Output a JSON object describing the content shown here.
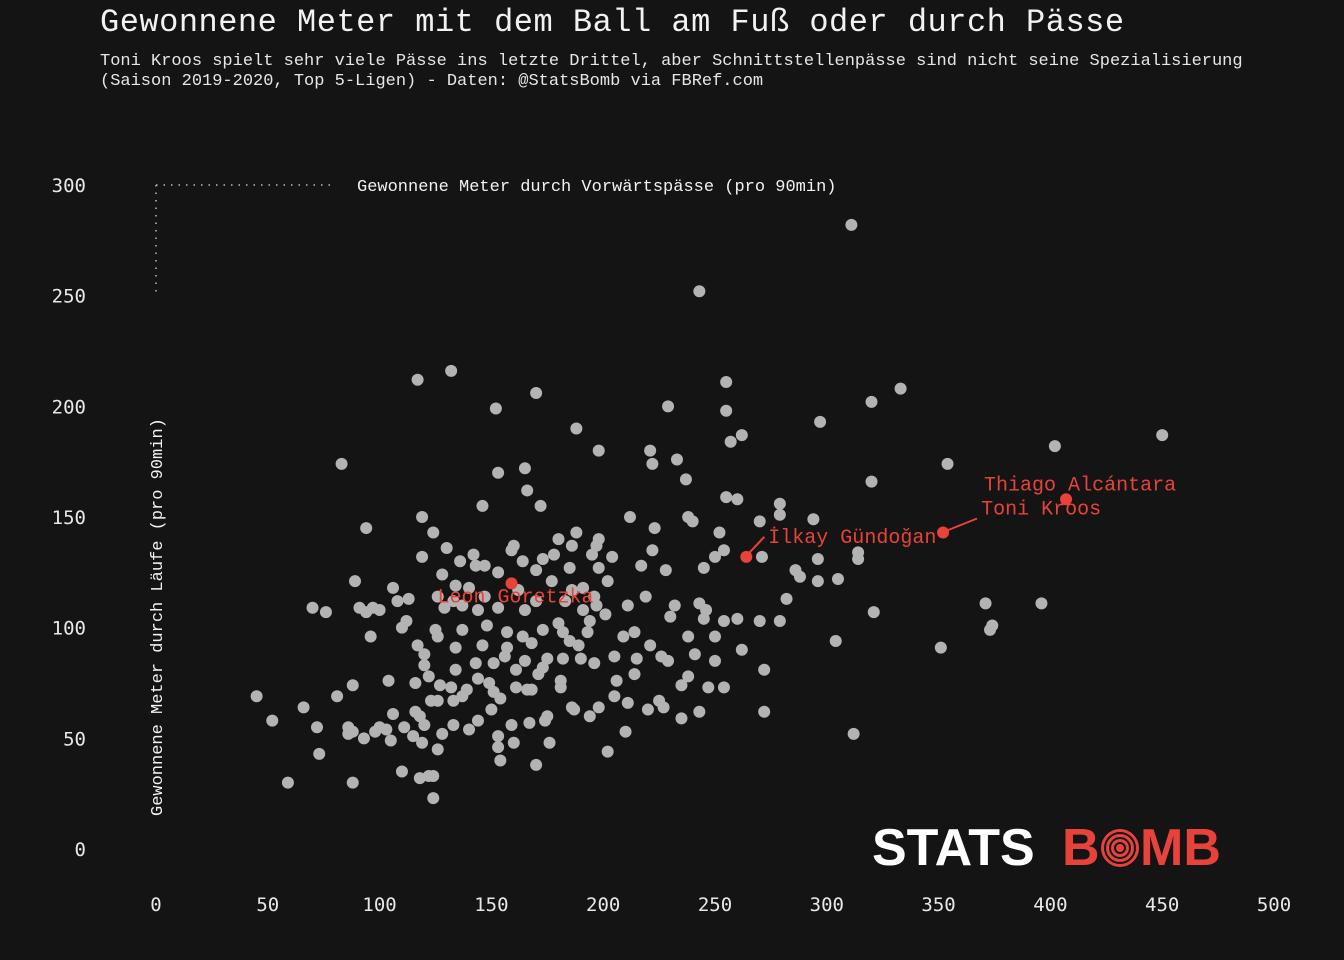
{
  "title": "Gewonnene Meter mit dem Ball am Fuß oder durch Pässe",
  "subtitle_line1": "Toni Kroos spielt sehr viele Pässe ins letzte Drittel, aber Schnittstellenpässe sind nicht seine Spezialisierung",
  "subtitle_line2": "(Saison 2019-2020, Top 5-Ligen) - Daten: @StatsBomb via FBRef.com",
  "logo": {
    "text_left": "STATS",
    "text_right": "B",
    "text_right2": "MB",
    "color_left": "#ffffff",
    "color_right": "#e8433a"
  },
  "colors": {
    "background": "#141414",
    "points": "#b3b3b3",
    "highlight": "#e8433a",
    "text": "#e8e8e8"
  },
  "chart_data": {
    "type": "scatter",
    "title": "Gewonnene Meter mit dem Ball am Fuß oder durch Pässe",
    "xlabel": "Gewonnene Meter durch Vorwärtspässe (pro 90min)",
    "ylabel": "Gewonnene Meter durch Läufe (pro 90min)",
    "xlim": [
      0,
      500
    ],
    "ylim": [
      0,
      300
    ],
    "xticks": [
      0,
      50,
      100,
      150,
      200,
      250,
      300,
      350,
      400,
      450,
      500
    ],
    "yticks": [
      0,
      50,
      100,
      150,
      200,
      250,
      300
    ],
    "grid": false,
    "highlighted": [
      {
        "name": "Thiago Alcántara",
        "x": 407,
        "y": 158
      },
      {
        "name": "Toni Kroos",
        "x": 352,
        "y": 143
      },
      {
        "name": "İlkay Gündoğan",
        "x": 264,
        "y": 132
      },
      {
        "name": "Leon Goretzka",
        "x": 159,
        "y": 120
      }
    ],
    "points": [
      [
        311,
        282
      ],
      [
        243,
        252
      ],
      [
        132,
        216
      ],
      [
        117,
        212
      ],
      [
        255,
        211
      ],
      [
        333,
        208
      ],
      [
        170,
        206
      ],
      [
        152,
        199
      ],
      [
        229,
        200
      ],
      [
        320,
        202
      ],
      [
        255,
        198
      ],
      [
        297,
        193
      ],
      [
        188,
        190
      ],
      [
        262,
        187
      ],
      [
        450,
        187
      ],
      [
        257,
        184
      ],
      [
        402,
        182
      ],
      [
        198,
        180
      ],
      [
        221,
        180
      ],
      [
        233,
        176
      ],
      [
        83,
        174
      ],
      [
        222,
        174
      ],
      [
        354,
        174
      ],
      [
        165,
        172
      ],
      [
        237,
        167
      ],
      [
        320,
        166
      ],
      [
        153,
        170
      ],
      [
        166,
        162
      ],
      [
        260,
        158
      ],
      [
        255,
        159
      ],
      [
        279,
        156
      ],
      [
        146,
        155
      ],
      [
        172,
        155
      ],
      [
        279,
        151
      ],
      [
        119,
        150
      ],
      [
        212,
        150
      ],
      [
        238,
        150
      ],
      [
        294,
        149
      ],
      [
        270,
        148
      ],
      [
        240,
        148
      ],
      [
        94,
        145
      ],
      [
        223,
        145
      ],
      [
        188,
        143
      ],
      [
        124,
        143
      ],
      [
        252,
        143
      ],
      [
        180,
        140
      ],
      [
        198,
        140
      ],
      [
        197,
        137
      ],
      [
        130,
        136
      ],
      [
        160,
        137
      ],
      [
        186,
        137
      ],
      [
        159,
        135
      ],
      [
        222,
        135
      ],
      [
        254,
        135
      ],
      [
        250,
        132
      ],
      [
        142,
        133
      ],
      [
        314,
        134
      ],
      [
        173,
        131
      ],
      [
        178,
        133
      ],
      [
        195,
        133
      ],
      [
        204,
        132
      ],
      [
        271,
        132
      ],
      [
        296,
        131
      ],
      [
        119,
        132
      ],
      [
        136,
        130
      ],
      [
        147,
        128
      ],
      [
        164,
        130
      ],
      [
        314,
        131
      ],
      [
        217,
        128
      ],
      [
        245,
        127
      ],
      [
        143,
        128
      ],
      [
        128,
        124
      ],
      [
        153,
        125
      ],
      [
        170,
        126
      ],
      [
        185,
        127
      ],
      [
        198,
        127
      ],
      [
        228,
        126
      ],
      [
        286,
        126
      ],
      [
        288,
        123
      ],
      [
        305,
        122
      ],
      [
        89,
        121
      ],
      [
        202,
        121
      ],
      [
        296,
        121
      ],
      [
        134,
        119
      ],
      [
        177,
        121
      ],
      [
        140,
        118
      ],
      [
        162,
        117
      ],
      [
        186,
        117
      ],
      [
        191,
        118
      ],
      [
        106,
        118
      ],
      [
        126,
        114
      ],
      [
        113,
        113
      ],
      [
        196,
        114
      ],
      [
        219,
        114
      ],
      [
        282,
        113
      ],
      [
        147,
        114
      ],
      [
        108,
        112
      ],
      [
        133,
        112
      ],
      [
        170,
        112
      ],
      [
        183,
        112
      ],
      [
        137,
        110
      ],
      [
        197,
        110
      ],
      [
        243,
        111
      ],
      [
        371,
        111
      ],
      [
        396,
        111
      ],
      [
        70,
        109
      ],
      [
        76,
        107
      ],
      [
        91,
        109
      ],
      [
        94,
        107
      ],
      [
        97,
        109
      ],
      [
        100,
        108
      ],
      [
        129,
        109
      ],
      [
        144,
        108
      ],
      [
        153,
        109
      ],
      [
        165,
        108
      ],
      [
        191,
        108
      ],
      [
        211,
        110
      ],
      [
        232,
        110
      ],
      [
        246,
        108
      ],
      [
        321,
        107
      ],
      [
        201,
        106
      ],
      [
        230,
        105
      ],
      [
        245,
        104
      ],
      [
        260,
        104
      ],
      [
        270,
        103
      ],
      [
        279,
        103
      ],
      [
        112,
        103
      ],
      [
        110,
        100
      ],
      [
        148,
        101
      ],
      [
        180,
        102
      ],
      [
        194,
        103
      ],
      [
        254,
        103
      ],
      [
        137,
        99
      ],
      [
        125,
        99
      ],
      [
        157,
        98
      ],
      [
        173,
        99
      ],
      [
        182,
        98
      ],
      [
        193,
        98
      ],
      [
        214,
        98
      ],
      [
        126,
        96
      ],
      [
        96,
        96
      ],
      [
        164,
        96
      ],
      [
        209,
        96
      ],
      [
        238,
        96
      ],
      [
        250,
        96
      ],
      [
        185,
        94
      ],
      [
        304,
        94
      ],
      [
        146,
        92
      ],
      [
        168,
        93
      ],
      [
        189,
        92
      ],
      [
        221,
        92
      ],
      [
        117,
        92
      ],
      [
        134,
        91
      ],
      [
        157,
        91
      ],
      [
        262,
        90
      ],
      [
        351,
        91
      ],
      [
        374,
        101
      ],
      [
        373,
        99
      ],
      [
        241,
        88
      ],
      [
        120,
        88
      ],
      [
        156,
        87
      ],
      [
        165,
        85
      ],
      [
        205,
        87
      ],
      [
        226,
        87
      ],
      [
        175,
        86
      ],
      [
        215,
        86
      ],
      [
        182,
        86
      ],
      [
        190,
        86
      ],
      [
        229,
        85
      ],
      [
        250,
        85
      ],
      [
        143,
        84
      ],
      [
        151,
        84
      ],
      [
        196,
        84
      ],
      [
        173,
        82
      ],
      [
        120,
        83
      ],
      [
        161,
        81
      ],
      [
        272,
        81
      ],
      [
        134,
        81
      ],
      [
        122,
        78
      ],
      [
        214,
        79
      ],
      [
        104,
        76
      ],
      [
        181,
        76
      ],
      [
        144,
        77
      ],
      [
        171,
        79
      ],
      [
        116,
        75
      ],
      [
        149,
        75
      ],
      [
        206,
        76
      ],
      [
        238,
        78
      ],
      [
        127,
        74
      ],
      [
        132,
        73
      ],
      [
        168,
        72
      ],
      [
        247,
        73
      ],
      [
        88,
        74
      ],
      [
        139,
        72
      ],
      [
        235,
        74
      ],
      [
        181,
        73
      ],
      [
        254,
        73
      ],
      [
        161,
        73
      ],
      [
        166,
        72
      ],
      [
        151,
        71
      ],
      [
        45,
        69
      ],
      [
        81,
        69
      ],
      [
        126,
        67
      ],
      [
        137,
        69
      ],
      [
        133,
        67
      ],
      [
        154,
        68
      ],
      [
        205,
        69
      ],
      [
        123,
        67
      ],
      [
        225,
        67
      ],
      [
        66,
        64
      ],
      [
        186,
        64
      ],
      [
        198,
        64
      ],
      [
        211,
        66
      ],
      [
        227,
        64
      ],
      [
        187,
        63
      ],
      [
        116,
        62
      ],
      [
        243,
        62
      ],
      [
        272,
        62
      ],
      [
        150,
        63
      ],
      [
        220,
        63
      ],
      [
        175,
        60
      ],
      [
        194,
        60
      ],
      [
        106,
        61
      ],
      [
        118,
        60
      ],
      [
        235,
        59
      ],
      [
        52,
        58
      ],
      [
        144,
        58
      ],
      [
        174,
        58
      ],
      [
        167,
        57
      ],
      [
        120,
        56
      ],
      [
        133,
        56
      ],
      [
        72,
        55
      ],
      [
        86,
        55
      ],
      [
        100,
        55
      ],
      [
        111,
        55
      ],
      [
        159,
        56
      ],
      [
        103,
        54
      ],
      [
        88,
        53
      ],
      [
        98,
        53
      ],
      [
        140,
        54
      ],
      [
        210,
        53
      ],
      [
        312,
        52
      ],
      [
        86,
        52
      ],
      [
        128,
        52
      ],
      [
        115,
        51
      ],
      [
        153,
        51
      ],
      [
        93,
        50
      ],
      [
        105,
        49
      ],
      [
        119,
        48
      ],
      [
        160,
        48
      ],
      [
        176,
        48
      ],
      [
        153,
        46
      ],
      [
        126,
        45
      ],
      [
        202,
        44
      ],
      [
        73,
        43
      ],
      [
        154,
        40
      ],
      [
        170,
        38
      ],
      [
        110,
        35
      ],
      [
        122,
        33
      ],
      [
        124,
        33
      ],
      [
        118,
        32
      ],
      [
        88,
        30
      ],
      [
        59,
        30
      ],
      [
        124,
        23
      ]
    ]
  }
}
